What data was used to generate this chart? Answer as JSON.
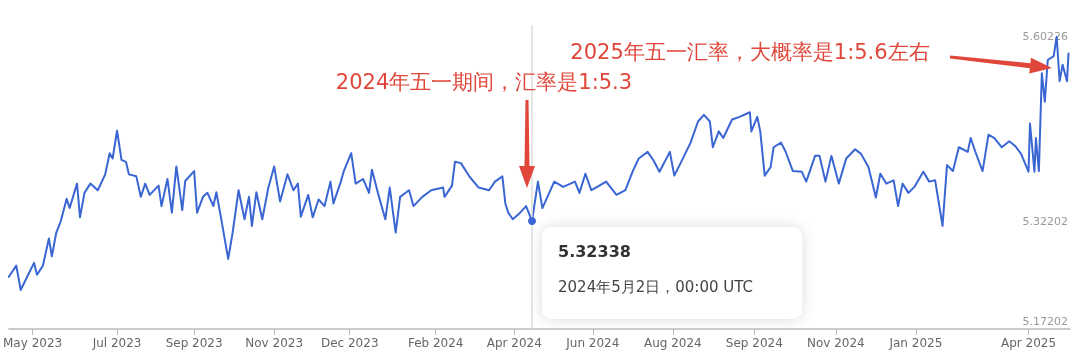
{
  "chart_data": {
    "type": "line",
    "marker": "none",
    "line_style": "solid",
    "grid": false,
    "xlim": [
      "2023-05-15",
      "2025-04-30"
    ],
    "xticks": [
      {
        "value": "2023-05-31",
        "label": "May 2023"
      },
      {
        "value": "2023-07-27",
        "label": "Jul 2023"
      },
      {
        "value": "2023-09-17",
        "label": "Sep 2023"
      },
      {
        "value": "2023-11-10",
        "label": "Nov 2023"
      },
      {
        "value": "2023-12-31",
        "label": "Dec 2023"
      },
      {
        "value": "2024-02-27",
        "label": "Feb 2024"
      },
      {
        "value": "2024-04-20",
        "label": "Apr 2024"
      },
      {
        "value": "2024-06-12",
        "label": "Jun 2024"
      },
      {
        "value": "2024-08-05",
        "label": "Aug 2024"
      },
      {
        "value": "2024-09-29",
        "label": "Sep 2024"
      },
      {
        "value": "2024-11-23",
        "label": "Nov 2024"
      },
      {
        "value": "2025-01-16",
        "label": "Jan 2025"
      },
      {
        "value": "2025-04-02",
        "label": "Apr 2025"
      }
    ],
    "ylim": [
      5.16,
      5.62
    ],
    "yticks": [
      5.17202,
      5.32202,
      5.60226
    ],
    "ref_lines": [
      {
        "axis": "x",
        "value": "2024-05-02",
        "color": "#dddddd"
      }
    ],
    "annotations": [
      "2024年五一期间，汇率是1:5.3",
      "2025年五一汇率，大概率是1:5.6左右",
      {
        "text": "5.32338",
        "x": "2024-05-02",
        "y": 5.32338
      },
      "2024年5月2日，00:00 UTC"
    ],
    "series": [
      {
        "color": "#3a66d4",
        "x": [
          "2023-05-15",
          "2023-05-20",
          "2023-05-23",
          "2023-05-28",
          "2023-06-01",
          "2023-06-03",
          "2023-06-07",
          "2023-06-11",
          "2023-06-13",
          "2023-06-16",
          "2023-06-19",
          "2023-06-23",
          "2023-06-25",
          "2023-06-30",
          "2023-07-02",
          "2023-07-05",
          "2023-07-09",
          "2023-07-14",
          "2023-07-19",
          "2023-07-22",
          "2023-07-24",
          "2023-07-27",
          "2023-07-30",
          "2023-08-02",
          "2023-08-04",
          "2023-08-09",
          "2023-08-12",
          "2023-08-15",
          "2023-08-18",
          "2023-08-24",
          "2023-08-26",
          "2023-08-30",
          "2023-09-02",
          "2023-09-05",
          "2023-09-09",
          "2023-09-11",
          "2023-09-17",
          "2023-09-19",
          "2023-09-23",
          "2023-09-26",
          "2023-09-30",
          "2023-10-02",
          "2023-10-05",
          "2023-10-10",
          "2023-10-13",
          "2023-10-17",
          "2023-10-21",
          "2023-10-24",
          "2023-10-26",
          "2023-10-29",
          "2023-11-02",
          "2023-11-06",
          "2023-11-10",
          "2023-11-14",
          "2023-11-19",
          "2023-11-23",
          "2023-11-26",
          "2023-11-28",
          "2023-12-03",
          "2023-12-06",
          "2023-12-10",
          "2023-12-14",
          "2023-12-18",
          "2023-12-20",
          "2023-12-25",
          "2023-12-27",
          "2024-01-01",
          "2024-01-04",
          "2024-01-09",
          "2024-01-13",
          "2024-01-15",
          "2024-01-19",
          "2024-01-24",
          "2024-01-27",
          "2024-01-31",
          "2024-02-03",
          "2024-02-09",
          "2024-02-12",
          "2024-02-18",
          "2024-02-24",
          "2024-03-03",
          "2024-03-04",
          "2024-03-09",
          "2024-03-11",
          "2024-03-15",
          "2024-03-21",
          "2024-03-27",
          "2024-04-03",
          "2024-04-07",
          "2024-04-12",
          "2024-04-14",
          "2024-04-16",
          "2024-04-19",
          "2024-04-24",
          "2024-04-28",
          "2024-05-02",
          "2024-05-06",
          "2024-05-09",
          "2024-05-17",
          "2024-05-23",
          "2024-05-31",
          "2024-06-03",
          "2024-06-07",
          "2024-06-11",
          "2024-06-15",
          "2024-06-21",
          "2024-06-28",
          "2024-07-04",
          "2024-07-09",
          "2024-07-13",
          "2024-07-19",
          "2024-07-23",
          "2024-07-27",
          "2024-08-03",
          "2024-08-06",
          "2024-08-12",
          "2024-08-17",
          "2024-08-22",
          "2024-08-26",
          "2024-08-30",
          "2024-09-01",
          "2024-09-05",
          "2024-09-08",
          "2024-09-14",
          "2024-09-19",
          "2024-09-26",
          "2024-09-27",
          "2024-10-01",
          "2024-10-03",
          "2024-10-06",
          "2024-10-10",
          "2024-10-12",
          "2024-10-17",
          "2024-10-20",
          "2024-10-25",
          "2024-10-31",
          "2024-11-03",
          "2024-11-09",
          "2024-11-12",
          "2024-11-16",
          "2024-11-20",
          "2024-11-25",
          "2024-11-30",
          "2024-12-06",
          "2024-12-10",
          "2024-12-15",
          "2024-12-20",
          "2024-12-23",
          "2024-12-27",
          "2025-01-01",
          "2025-01-04",
          "2025-01-07",
          "2025-01-11",
          "2025-01-15",
          "2025-01-21",
          "2025-01-25",
          "2025-01-29",
          "2025-02-03",
          "2025-02-06",
          "2025-02-10",
          "2025-02-14",
          "2025-02-20",
          "2025-02-22",
          "2025-02-25",
          "2025-03-02",
          "2025-03-06",
          "2025-03-10",
          "2025-03-15",
          "2025-03-20",
          "2025-03-24",
          "2025-03-28",
          "2025-04-02",
          "2025-04-03",
          "2025-04-06",
          "2025-04-07",
          "2025-04-09",
          "2025-04-11",
          "2025-04-13",
          "2025-04-15",
          "2025-04-19",
          "2025-04-21",
          "2025-04-23",
          "2025-04-25",
          "2025-04-28",
          "2025-04-29"
        ],
        "values": [
          5.239,
          5.256,
          5.219,
          5.242,
          5.26,
          5.242,
          5.256,
          5.297,
          5.27,
          5.306,
          5.323,
          5.357,
          5.343,
          5.38,
          5.329,
          5.366,
          5.38,
          5.37,
          5.394,
          5.426,
          5.418,
          5.46,
          5.416,
          5.413,
          5.394,
          5.391,
          5.36,
          5.38,
          5.363,
          5.377,
          5.346,
          5.387,
          5.336,
          5.406,
          5.34,
          5.384,
          5.399,
          5.336,
          5.36,
          5.366,
          5.346,
          5.367,
          5.33,
          5.266,
          5.306,
          5.37,
          5.326,
          5.36,
          5.316,
          5.367,
          5.326,
          5.373,
          5.406,
          5.353,
          5.394,
          5.37,
          5.38,
          5.33,
          5.363,
          5.329,
          5.356,
          5.346,
          5.383,
          5.35,
          5.383,
          5.399,
          5.426,
          5.38,
          5.387,
          5.366,
          5.401,
          5.366,
          5.326,
          5.374,
          5.306,
          5.36,
          5.37,
          5.346,
          5.36,
          5.37,
          5.374,
          5.36,
          5.377,
          5.413,
          5.411,
          5.39,
          5.374,
          5.37,
          5.383,
          5.391,
          5.35,
          5.336,
          5.326,
          5.336,
          5.346,
          5.32338,
          5.383,
          5.343,
          5.383,
          5.375,
          5.383,
          5.366,
          5.395,
          5.37,
          5.375,
          5.383,
          5.363,
          5.37,
          5.399,
          5.418,
          5.428,
          5.415,
          5.398,
          5.428,
          5.392,
          5.419,
          5.442,
          5.474,
          5.484,
          5.474,
          5.435,
          5.459,
          5.449,
          5.477,
          5.481,
          5.488,
          5.459,
          5.481,
          5.459,
          5.392,
          5.405,
          5.435,
          5.442,
          5.429,
          5.399,
          5.398,
          5.383,
          5.422,
          5.422,
          5.383,
          5.422,
          5.38,
          5.418,
          5.432,
          5.425,
          5.405,
          5.359,
          5.395,
          5.38,
          5.385,
          5.346,
          5.38,
          5.366,
          5.375,
          5.398,
          5.383,
          5.385,
          5.316,
          5.408,
          5.399,
          5.435,
          5.428,
          5.449,
          5.429,
          5.399,
          5.454,
          5.449,
          5.435,
          5.444,
          5.437,
          5.425,
          5.398,
          5.471,
          5.398,
          5.449,
          5.399,
          5.547,
          5.504,
          5.567,
          5.573,
          5.60226,
          5.535,
          5.56,
          5.535,
          5.577
        ]
      }
    ]
  }
}
